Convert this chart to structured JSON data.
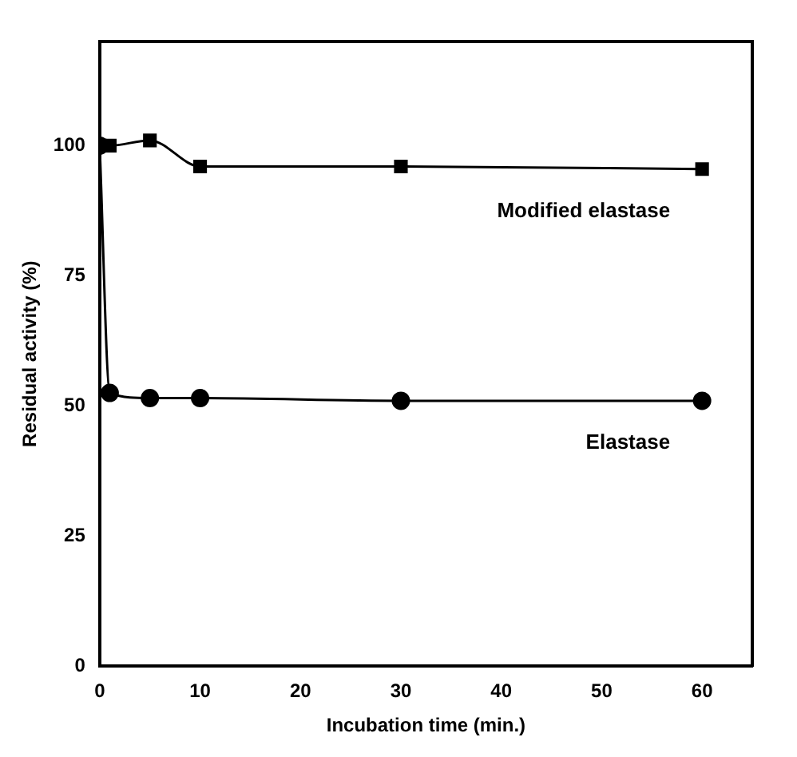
{
  "chart_data": {
    "type": "line",
    "xlabel": "Incubation time (min.)",
    "ylabel": "Residual activity (%)",
    "xlim": [
      0,
      65
    ],
    "ylim": [
      0,
      120
    ],
    "xticks": [
      0,
      10,
      20,
      30,
      40,
      50,
      60
    ],
    "yticks": [
      0,
      25,
      50,
      75,
      100
    ],
    "grid": false,
    "legend": false,
    "series": [
      {
        "name": "Modified elastase",
        "color": "#000000",
        "marker": "square",
        "x": [
          0,
          1,
          5,
          10,
          30,
          60
        ],
        "values": [
          100,
          100,
          101,
          96,
          96,
          95.5
        ]
      },
      {
        "name": "Elastase",
        "color": "#000000",
        "marker": "circle",
        "x": [
          0,
          1,
          5,
          10,
          30,
          60
        ],
        "values": [
          100,
          52.5,
          51.5,
          51.5,
          51,
          51
        ]
      }
    ]
  }
}
